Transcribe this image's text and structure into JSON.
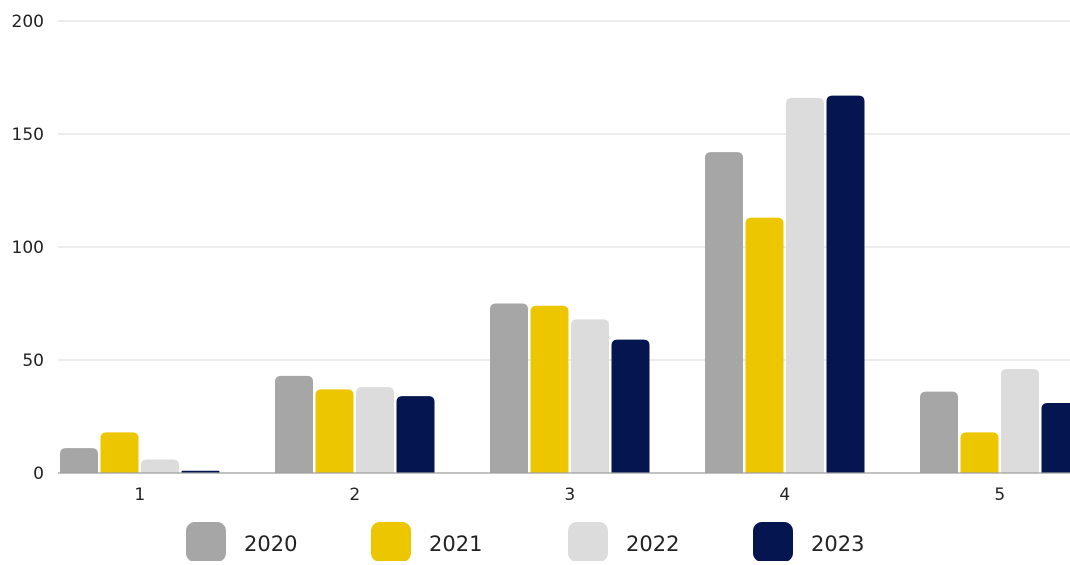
{
  "chart_data": {
    "type": "bar",
    "title": "",
    "xlabel": "",
    "ylabel": "",
    "categories": [
      "1",
      "2",
      "3",
      "4",
      "5"
    ],
    "series": [
      {
        "name": "2020",
        "color": "#a6a6a6",
        "values": [
          11,
          43,
          75,
          142,
          36
        ]
      },
      {
        "name": "2021",
        "color": "#ecc700",
        "values": [
          18,
          37,
          74,
          113,
          18
        ]
      },
      {
        "name": "2022",
        "color": "#dcdcdc",
        "values": [
          6,
          38,
          68,
          166,
          46
        ]
      },
      {
        "name": "2023",
        "color": "#04154f",
        "values": [
          1,
          34,
          59,
          167,
          31
        ]
      }
    ],
    "ylim": [
      0,
      200
    ],
    "yticks": [
      0,
      50,
      100,
      150,
      200
    ],
    "grid": true,
    "legend_position": "bottom"
  }
}
